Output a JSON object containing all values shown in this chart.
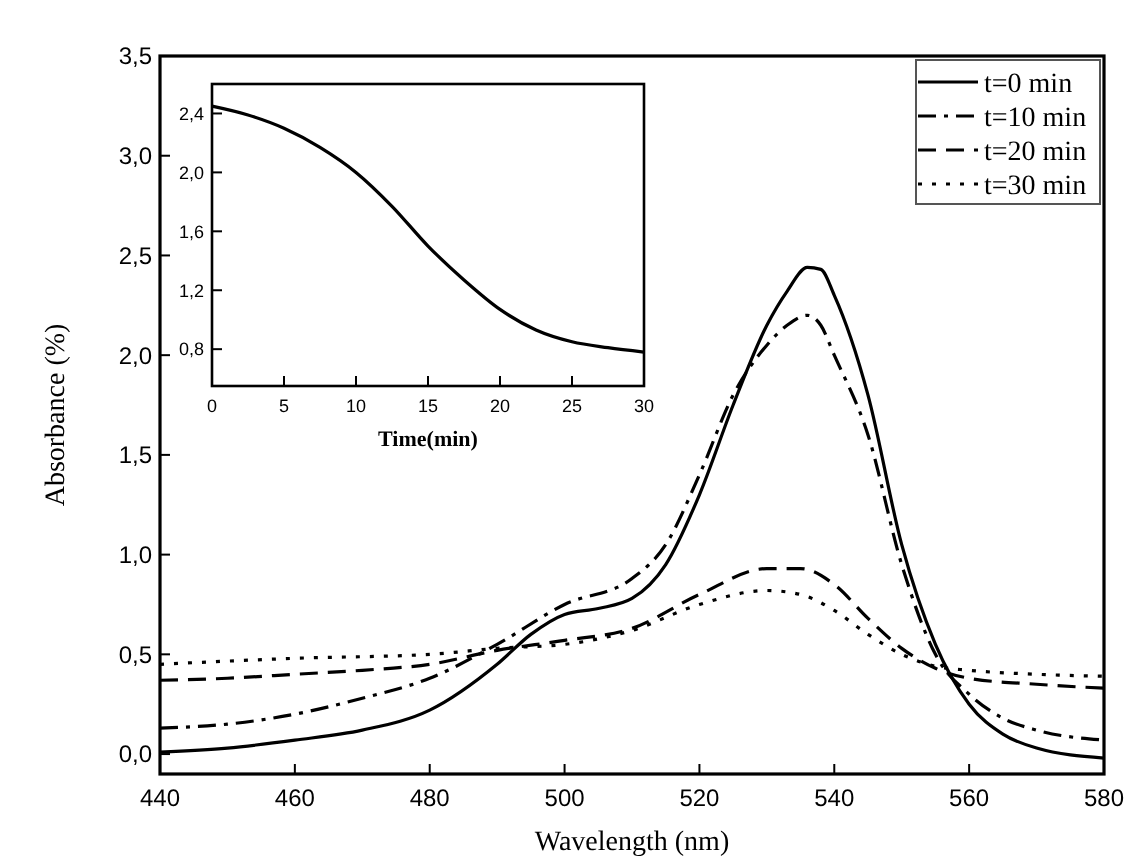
{
  "chart_data": [
    {
      "type": "line",
      "xlabel": "Wavelength (nm)",
      "ylabel": "Absorbance (%)",
      "xlim": [
        440,
        580
      ],
      "ylim": [
        -0.1,
        3.5
      ],
      "xticks": [
        440,
        460,
        480,
        500,
        520,
        540,
        560,
        580
      ],
      "yticks": [
        {
          "value": 0,
          "label": "0,0"
        },
        {
          "value": 0.5,
          "label": "0,5"
        },
        {
          "value": 1,
          "label": "1,0"
        },
        {
          "value": 1.5,
          "label": "1,5"
        },
        {
          "value": 2,
          "label": "2,0"
        },
        {
          "value": 2.5,
          "label": "2,5"
        },
        {
          "value": 3,
          "label": "3,0"
        },
        {
          "value": 3.5,
          "label": "3,5"
        }
      ],
      "legend": "top right",
      "marker": "none",
      "grid": false,
      "series": [
        {
          "name": "t=0 min",
          "color": "#000000",
          "line_style": "solid",
          "x": [
            440,
            450,
            460,
            470,
            480,
            490,
            495,
            500,
            505,
            510,
            515,
            520,
            525,
            530,
            533,
            536,
            538,
            540,
            545,
            550,
            555,
            560,
            565,
            570,
            580
          ],
          "values": [
            0.01,
            0.03,
            0.07,
            0.12,
            0.22,
            0.45,
            0.6,
            0.7,
            0.73,
            0.78,
            0.95,
            1.3,
            1.75,
            2.15,
            2.32,
            2.44,
            2.43,
            2.3,
            1.8,
            1.05,
            0.55,
            0.25,
            0.1,
            0.03,
            -0.02
          ]
        },
        {
          "name": "t=10 min",
          "color": "#000000",
          "line_style": "dashdot",
          "x": [
            440,
            450,
            460,
            470,
            480,
            490,
            500,
            510,
            515,
            520,
            525,
            530,
            533,
            536,
            538,
            540,
            545,
            550,
            555,
            560,
            565,
            570,
            580
          ],
          "values": [
            0.13,
            0.15,
            0.2,
            0.28,
            0.38,
            0.55,
            0.75,
            0.88,
            1.05,
            1.4,
            1.8,
            2.05,
            2.15,
            2.2,
            2.15,
            2.0,
            1.6,
            0.95,
            0.5,
            0.3,
            0.18,
            0.12,
            0.07
          ]
        },
        {
          "name": "t=20 min",
          "color": "#000000",
          "line_style": "dashed",
          "x": [
            440,
            450,
            460,
            470,
            480,
            490,
            500,
            510,
            520,
            530,
            535,
            540,
            545,
            550,
            555,
            560,
            570,
            580
          ],
          "values": [
            0.37,
            0.38,
            0.4,
            0.42,
            0.45,
            0.52,
            0.57,
            0.63,
            0.8,
            0.93,
            0.93,
            0.85,
            0.68,
            0.53,
            0.43,
            0.38,
            0.35,
            0.33
          ]
        },
        {
          "name": "t=30 min",
          "color": "#000000",
          "line_style": "dotted",
          "x": [
            440,
            460,
            480,
            490,
            500,
            510,
            520,
            530,
            535,
            540,
            545,
            550,
            555,
            560,
            570,
            580
          ],
          "values": [
            0.45,
            0.48,
            0.5,
            0.53,
            0.55,
            0.62,
            0.75,
            0.82,
            0.8,
            0.72,
            0.6,
            0.5,
            0.44,
            0.42,
            0.4,
            0.39
          ]
        }
      ]
    },
    {
      "type": "line",
      "xlabel": "Time(min)",
      "xlim": [
        0,
        30
      ],
      "ylim": [
        0.55,
        2.6
      ],
      "xticks": [
        0,
        5,
        10,
        15,
        20,
        25,
        30
      ],
      "yticks": [
        {
          "value": 0.8,
          "label": "0,8"
        },
        {
          "value": 1.2,
          "label": "1,2"
        },
        {
          "value": 1.6,
          "label": "1,6"
        },
        {
          "value": 2.0,
          "label": "2,0"
        },
        {
          "value": 2.4,
          "label": "2,4"
        }
      ],
      "marker": "none",
      "grid": false,
      "series": [
        {
          "color": "#000000",
          "line_style": "solid",
          "x": [
            0,
            2.5,
            5,
            7.5,
            10,
            12.5,
            15,
            17.5,
            20,
            22.5,
            25,
            27.5,
            30
          ],
          "values": [
            2.45,
            2.39,
            2.3,
            2.17,
            2.0,
            1.77,
            1.5,
            1.27,
            1.07,
            0.93,
            0.85,
            0.81,
            0.78
          ]
        }
      ]
    }
  ]
}
